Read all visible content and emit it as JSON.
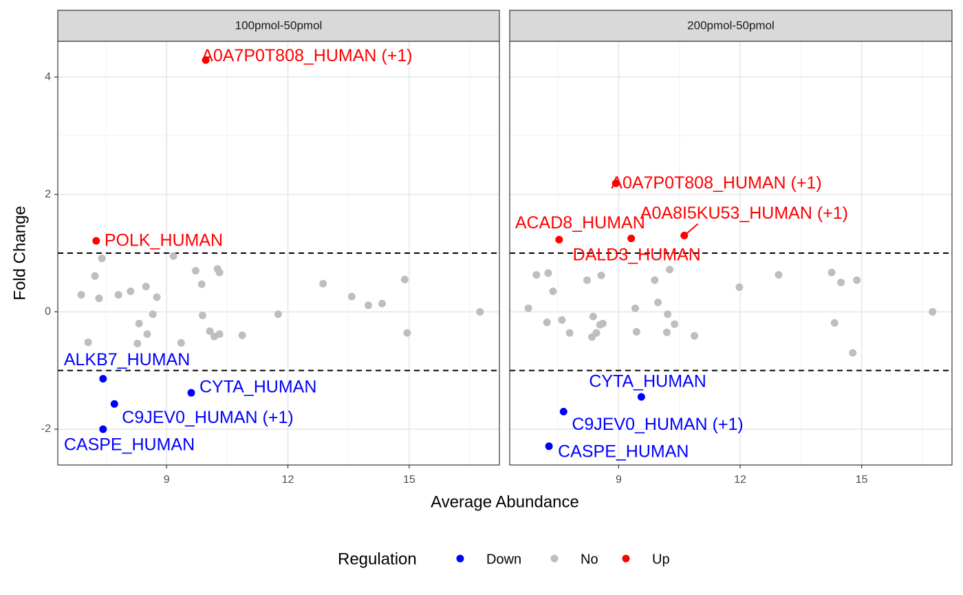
{
  "chart_data": {
    "type": "scatter",
    "xlabel": "Average Abundance",
    "ylabel": "Fold Change",
    "legend_title": "Regulation",
    "legend_position": "bottom",
    "grid": true,
    "xlim": [
      6.31,
      17.23
    ],
    "ylim": [
      -2.61,
      4.61
    ],
    "xticks": [
      9,
      12,
      15
    ],
    "yticks": [
      -2,
      0,
      2,
      4
    ],
    "hlines": [
      -1,
      1
    ],
    "series": [
      {
        "name": "Down",
        "color": "#0000ff"
      },
      {
        "name": "No",
        "color": "#bebebe"
      },
      {
        "name": "Up",
        "color": "#ff0000"
      }
    ],
    "panels": [
      {
        "title": "100pmol-50pmol",
        "series": [
          {
            "x": [
              7.43,
              7.71,
              7.43,
              9.61
            ],
            "values": [
              -1.14,
              -1.57,
              -2.0,
              -1.38
            ],
            "labels": [
              "ALKB7_HUMAN",
              "C9JEV0_HUMAN (+1)",
              "CASPE_HUMAN",
              "CYTA_HUMAN"
            ]
          },
          {
            "x": [
              6.89,
              7.06,
              7.23,
              7.33,
              7.4,
              7.81,
              8.11,
              8.28,
              8.32,
              8.49,
              8.52,
              8.66,
              8.76,
              9.17,
              9.36,
              9.72,
              9.87,
              9.89,
              10.07,
              10.18,
              10.26,
              10.31,
              10.31,
              10.87,
              11.76,
              12.87,
              13.58,
              13.99,
              14.33,
              14.89,
              14.95,
              16.75
            ],
            "values": [
              0.29,
              -0.52,
              0.61,
              0.23,
              0.91,
              0.29,
              0.35,
              -0.54,
              -0.2,
              0.43,
              -0.38,
              -0.04,
              0.25,
              0.95,
              -0.53,
              0.7,
              0.47,
              -0.06,
              -0.33,
              -0.42,
              0.73,
              0.67,
              -0.38,
              -0.4,
              -0.04,
              0.48,
              0.26,
              0.11,
              0.14,
              0.55,
              -0.36,
              0.0
            ]
          },
          {
            "x": [
              9.97,
              7.26
            ],
            "values": [
              4.29,
              1.21
            ],
            "labels": [
              "A0A7P0T808_HUMAN (+1)",
              "POLK_HUMAN"
            ]
          }
        ]
      },
      {
        "title": "200pmol-50pmol",
        "series": [
          {
            "x": [
              9.56,
              7.64,
              7.28
            ],
            "values": [
              -1.45,
              -1.7,
              -2.29
            ],
            "labels": [
              "CYTA_HUMAN",
              "C9JEV0_HUMAN (+1)",
              "CASPE_HUMAN"
            ]
          },
          {
            "x": [
              6.77,
              6.97,
              7.23,
              7.26,
              7.38,
              7.6,
              7.79,
              8.22,
              8.34,
              8.37,
              8.45,
              8.54,
              8.57,
              8.61,
              9.41,
              9.44,
              9.89,
              9.97,
              10.19,
              10.21,
              10.26,
              10.38,
              10.87,
              11.98,
              12.95,
              14.26,
              14.33,
              14.49,
              14.88,
              14.78,
              16.75
            ],
            "values": [
              0.06,
              0.63,
              -0.18,
              0.66,
              0.35,
              -0.14,
              -0.36,
              0.54,
              -0.43,
              -0.08,
              -0.36,
              -0.22,
              0.62,
              -0.2,
              0.06,
              -0.34,
              0.54,
              0.16,
              -0.35,
              -0.04,
              0.72,
              -0.21,
              -0.41,
              0.42,
              0.63,
              0.67,
              -0.19,
              0.5,
              0.54,
              -0.7,
              0.0
            ]
          },
          {
            "x": [
              8.93,
              7.53,
              9.31,
              10.62
            ],
            "values": [
              2.19,
              1.23,
              1.25,
              1.3
            ],
            "labels": [
              "A0A7P0T808_HUMAN (+1)",
              "ACAD8_HUMAN",
              "DALD3_HUMAN",
              "A0A8I5KU53_HUMAN (+1)"
            ]
          }
        ]
      }
    ]
  }
}
